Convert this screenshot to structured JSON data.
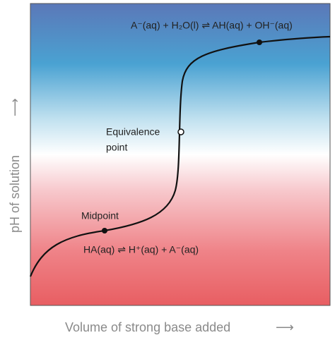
{
  "y_axis": {
    "label": "pH of solution",
    "arrow": "⟶"
  },
  "x_axis": {
    "label": "Volume of strong base added",
    "arrow": "⟶"
  },
  "annotations": {
    "top_equation": "A⁻(aq) + H₂O(l) ⇌ AH(aq) + OH⁻(aq)",
    "equivalence": [
      "Equivalence",
      "point"
    ],
    "midpoint": "Midpoint",
    "bottom_equation": "HA(aq) ⇌ H⁺(aq) + A⁻(aq)"
  }
}
